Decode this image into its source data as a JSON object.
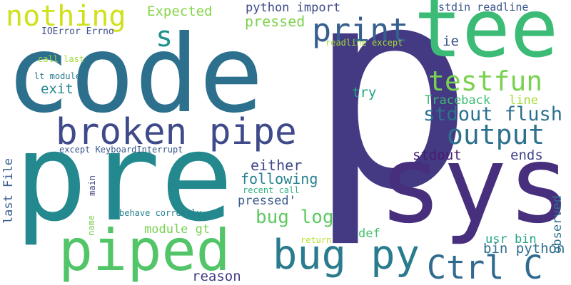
{
  "words": [
    {
      "text": "p",
      "color": "#443983"
    },
    {
      "text": "code",
      "color": "#2d708e"
    },
    {
      "text": "pre",
      "color": "#23898e"
    },
    {
      "text": "sys",
      "color": "#472f7d"
    },
    {
      "text": "tee",
      "color": "#3bbb75"
    },
    {
      "text": "piped",
      "color": "#52c569"
    },
    {
      "text": "broken pipe",
      "color": "#3e4a89"
    },
    {
      "text": "bug py",
      "color": "#297b8e"
    },
    {
      "text": "Ctrl C",
      "color": "#306a8e"
    },
    {
      "text": "print",
      "color": "#355f8d"
    },
    {
      "text": "output",
      "color": "#2d718e"
    },
    {
      "text": "testfun",
      "color": "#7ad151"
    },
    {
      "text": "nothing",
      "color": "#d0e11c"
    },
    {
      "text": "stdout flush",
      "color": "#2c728e"
    },
    {
      "text": "s",
      "color": "#21918c"
    },
    {
      "text": "bug log",
      "color": "#5ec962"
    },
    {
      "text": "Expected",
      "color": "#86d549"
    },
    {
      "text": "python import",
      "color": "#3e4989"
    },
    {
      "text": "pressed",
      "color": "#7fd34e"
    },
    {
      "text": "stdin readline",
      "color": "#3a548c"
    },
    {
      "text": "ie",
      "color": "#3b528b"
    },
    {
      "text": "readline except",
      "color": "#a2da37"
    },
    {
      "text": "IOError Errno",
      "color": "#3c4f8a"
    },
    {
      "text": "call last",
      "color": "#a0da39"
    },
    {
      "text": "lt module",
      "color": "#297a8e"
    },
    {
      "text": "exit",
      "color": "#24868e"
    },
    {
      "text": "try",
      "color": "#21a685"
    },
    {
      "text": "Traceback",
      "color": "#3dbc74"
    },
    {
      "text": "line",
      "color": "#a5db36"
    },
    {
      "text": "either",
      "color": "#3f4889"
    },
    {
      "text": "stdout",
      "color": "#481b6d"
    },
    {
      "text": "ends",
      "color": "#404688"
    },
    {
      "text": "following",
      "color": "#26818e"
    },
    {
      "text": "recent call",
      "color": "#2db27d"
    },
    {
      "text": "pressed'",
      "color": "#38598c"
    },
    {
      "text": "except KeyboardInterrupt",
      "color": "#39568c"
    },
    {
      "text": "behave correctly",
      "color": "#277f8e"
    },
    {
      "text": "module gt",
      "color": "#7ad151"
    },
    {
      "text": "def",
      "color": "#4ac16d"
    },
    {
      "text": "usr bin",
      "color": "#20a386"
    },
    {
      "text": "bin python",
      "color": "#2f6c8e"
    },
    {
      "text": "return",
      "color": "#b5de2b"
    },
    {
      "text": "reason",
      "color": "#433e85"
    },
    {
      "text": "last File",
      "color": "#355e8d"
    },
    {
      "text": "observed",
      "color": "#2c738e"
    },
    {
      "text": "name",
      "color": "#7ad151"
    },
    {
      "text": "main",
      "color": "#414487"
    }
  ]
}
